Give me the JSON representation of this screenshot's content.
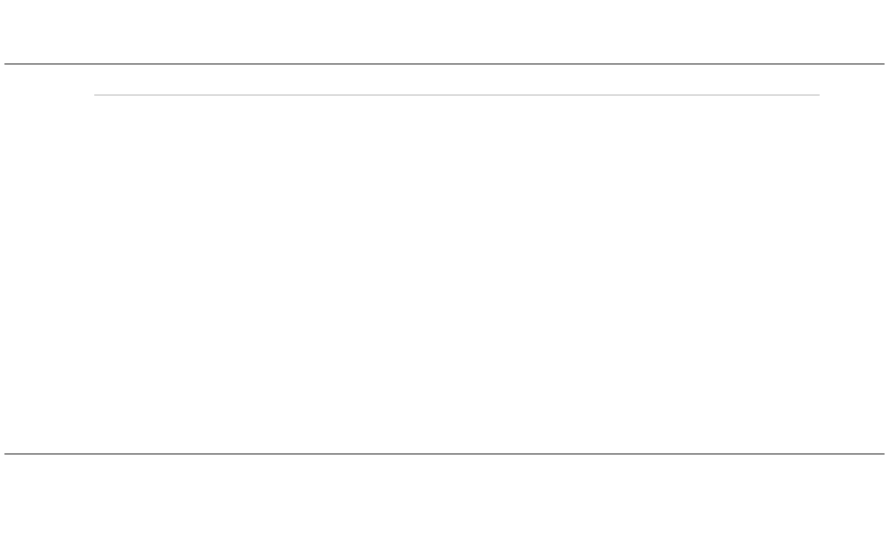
{
  "chart_data": {
    "type": "line",
    "title": "",
    "subtitle_lines": [],
    "xlabel": "",
    "ylabel": "",
    "legend_entries": [],
    "annotation_labels": [],
    "colors": {
      "series_main": "#4a55cc",
      "spike_orange": "#ff7a1a",
      "spike_yellow": "#e8e84a",
      "spike_red": "#e83a2a",
      "band_shade": "#efefef",
      "axis": "#444444"
    },
    "ylim": [
      0,
      100
    ],
    "x": [],
    "series": [],
    "bands": [],
    "grid": false
  }
}
